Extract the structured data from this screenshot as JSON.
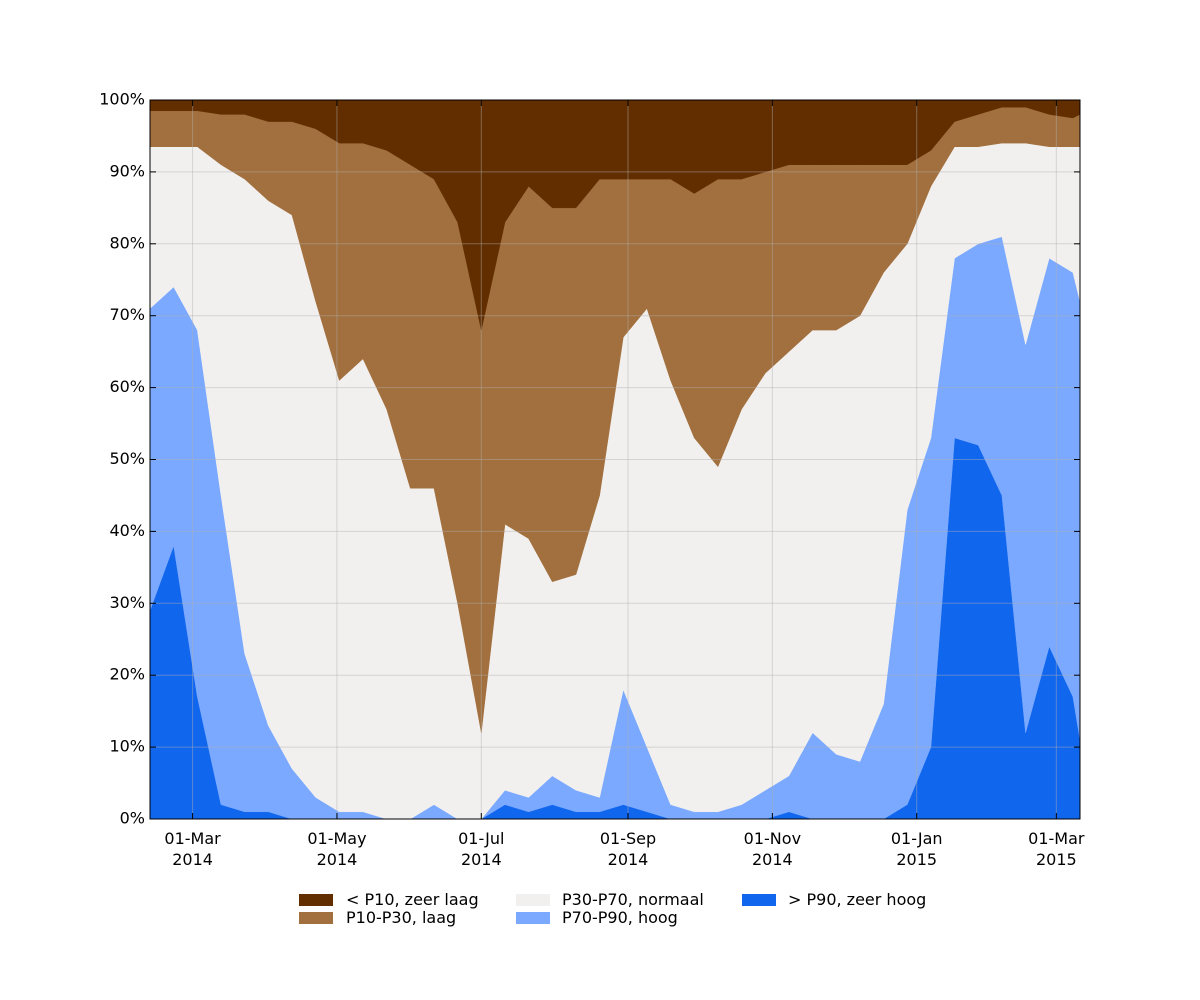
{
  "chart_data": {
    "type": "stacked_area",
    "x": [
      "2014-02-11",
      "2014-02-21",
      "2014-03-03",
      "2014-03-13",
      "2014-03-23",
      "2014-04-02",
      "2014-04-12",
      "2014-04-22",
      "2014-05-02",
      "2014-05-12",
      "2014-05-22",
      "2014-06-01",
      "2014-06-11",
      "2014-06-21",
      "2014-07-01",
      "2014-07-11",
      "2014-07-21",
      "2014-07-31",
      "2014-08-10",
      "2014-08-20",
      "2014-08-30",
      "2014-09-09",
      "2014-09-19",
      "2014-09-29",
      "2014-10-09",
      "2014-10-19",
      "2014-10-29",
      "2014-11-08",
      "2014-11-18",
      "2014-11-28",
      "2014-12-08",
      "2014-12-18",
      "2014-12-28",
      "2015-01-07",
      "2015-01-17",
      "2015-01-27",
      "2015-02-06",
      "2015-02-16",
      "2015-02-26",
      "2015-03-08",
      "2015-03-11"
    ],
    "series": [
      {
        "name": "< P10, zeer laag",
        "color": "#622e00",
        "values": [
          1.5,
          1.5,
          1.5,
          2,
          2,
          3,
          3,
          4,
          6,
          6,
          7,
          9,
          11,
          17,
          32,
          17,
          12,
          15,
          15,
          11,
          11,
          11,
          11,
          13,
          11,
          11,
          10,
          9,
          9,
          9,
          9,
          9,
          9,
          7,
          3,
          2,
          1,
          1,
          2,
          2.5,
          2
        ]
      },
      {
        "name": "P10-P30, laag",
        "color": "#a2703e",
        "values": [
          5,
          5,
          5,
          7,
          9,
          11,
          13,
          24,
          33,
          30,
          36,
          45,
          43,
          53,
          56,
          42,
          49,
          52,
          51,
          44,
          22,
          18,
          28,
          34,
          40,
          32,
          28,
          26,
          23,
          23,
          21,
          15,
          11,
          5,
          3.5,
          4.5,
          5,
          5,
          4.5,
          4,
          4.5
        ]
      },
      {
        "name": "P30-P70, normaal",
        "color": "#f2f0ef",
        "values": [
          22.5,
          19.5,
          25.5,
          46,
          66,
          73,
          77,
          69,
          60,
          63,
          57,
          46,
          44,
          30,
          12,
          37,
          36,
          27,
          30,
          42,
          49,
          61,
          59,
          52,
          48,
          55,
          58,
          59,
          56,
          59,
          62,
          60,
          37,
          35,
          15.5,
          13.5,
          13,
          28,
          15.5,
          17.5,
          21.5
        ]
      },
      {
        "name": "P70-P90, hoog",
        "color": "#7aa9ff",
        "values": [
          42,
          36,
          51,
          43,
          22,
          12,
          7,
          3,
          1,
          1,
          0,
          0,
          2,
          0,
          0,
          2,
          2,
          4,
          3,
          2,
          16,
          9,
          2,
          1,
          1,
          2,
          4,
          5,
          12,
          9,
          8,
          16,
          41,
          43,
          25,
          28,
          36,
          54,
          54,
          59,
          61
        ]
      },
      {
        "name": "> P90, zeer hoog",
        "color": "#1166ee",
        "values": [
          29,
          38,
          17,
          2,
          1,
          1,
          0,
          0,
          0,
          0,
          0,
          0,
          0,
          0,
          0,
          2,
          1,
          2,
          1,
          1,
          2,
          1,
          0,
          0,
          0,
          0,
          0,
          1,
          0,
          0,
          0,
          0,
          2,
          10,
          53,
          52,
          45,
          12,
          24,
          17,
          11
        ]
      }
    ],
    "xlim": [
      "2014-02-11",
      "2015-03-11"
    ],
    "xticks": [
      {
        "value": "2014-03-01",
        "label": "01-Mar\n2014"
      },
      {
        "value": "2014-05-01",
        "label": "01-May\n2014"
      },
      {
        "value": "2014-07-01",
        "label": "01-Jul\n2014"
      },
      {
        "value": "2014-09-01",
        "label": "01-Sep\n2014"
      },
      {
        "value": "2014-11-01",
        "label": "01-Nov\n2014"
      },
      {
        "value": "2015-01-01",
        "label": "01-Jan\n2015"
      },
      {
        "value": "2015-03-01",
        "label": "01-Mar\n2015"
      }
    ],
    "ylim": [
      0,
      100
    ],
    "yticks": [
      {
        "value": 0,
        "label": "0%"
      },
      {
        "value": 10,
        "label": "10%"
      },
      {
        "value": 20,
        "label": "20%"
      },
      {
        "value": 30,
        "label": "30%"
      },
      {
        "value": 40,
        "label": "40%"
      },
      {
        "value": 50,
        "label": "50%"
      },
      {
        "value": 60,
        "label": "60%"
      },
      {
        "value": 70,
        "label": "70%"
      },
      {
        "value": 80,
        "label": "80%"
      },
      {
        "value": 90,
        "label": "90%"
      },
      {
        "value": 100,
        "label": "100%"
      }
    ],
    "grid": true,
    "legend": "bottom"
  }
}
